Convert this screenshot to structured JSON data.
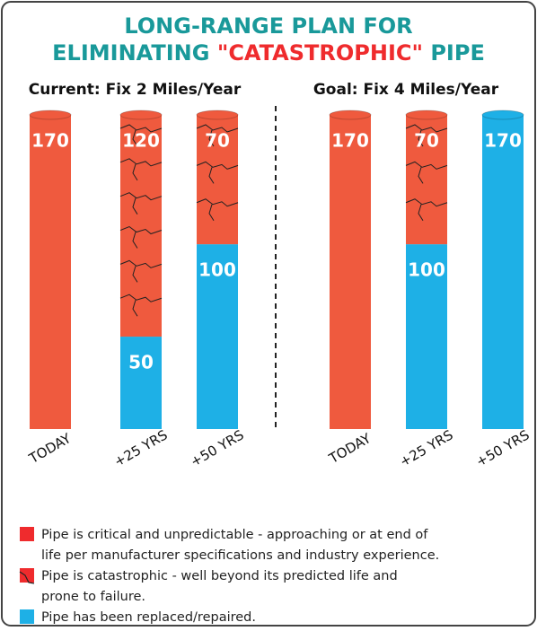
{
  "title_parts": [
    "LONG-RANGE PLAN FOR",
    "ELIMINATING ",
    "\"CATASTROPHIC\"",
    " PIPE"
  ],
  "chart_data": [
    {
      "type": "bar",
      "title": "Current: Fix 2 Miles/Year",
      "categories": [
        "TODAY",
        "+25 YRS",
        "+50 YRS"
      ],
      "series": [
        {
          "color": "#1eb0e6",
          "values": [
            null,
            50,
            100
          ]
        },
        {
          "color": "#ef5a3e",
          "values": [
            170,
            120,
            70
          ]
        }
      ],
      "cracked": [
        false,
        true,
        true
      ],
      "ylim": [
        0,
        170
      ]
    },
    {
      "type": "bar",
      "title": "Goal: Fix 4 Miles/Year",
      "categories": [
        "TODAY",
        "+25 YRS",
        "+50 YRS"
      ],
      "series": [
        {
          "color": "#1eb0e6",
          "values": [
            null,
            100,
            170
          ]
        },
        {
          "color": "#ef5a3e",
          "values": [
            170,
            70,
            null
          ]
        }
      ],
      "cracked": [
        false,
        true,
        false
      ],
      "ylim": [
        0,
        170
      ]
    }
  ],
  "legend": [
    {
      "lines": [
        "Pipe is critical and unpredictable - approaching or at end of",
        "life per manufacturer specifications and industry experience."
      ],
      "color": "#ef2b2d"
    },
    {
      "lines": [
        "Pipe is catastrophic - well beyond its predicted life and",
        "prone to failure."
      ],
      "color": "#ef2b2d"
    },
    {
      "lines": [
        "Pipe has been replaced/repaired."
      ],
      "color": "#1eb0e6"
    }
  ]
}
